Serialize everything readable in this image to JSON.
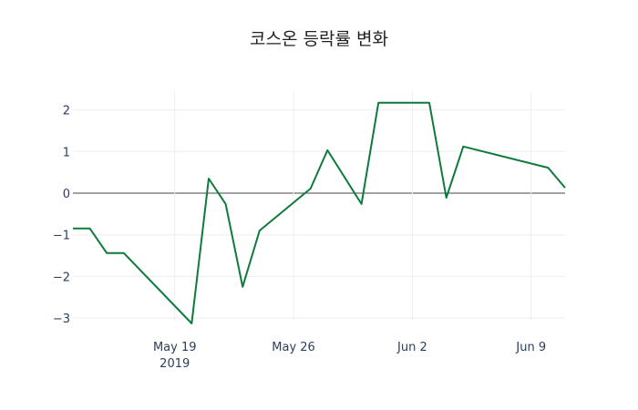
{
  "chart_data": {
    "type": "line",
    "title": "코스온 등락률 변화",
    "xlabel": "",
    "ylabel": "",
    "x": [
      "2019-05-13",
      "2019-05-14",
      "2019-05-15",
      "2019-05-16",
      "2019-05-20",
      "2019-05-21",
      "2019-05-22",
      "2019-05-23",
      "2019-05-24",
      "2019-05-27",
      "2019-05-28",
      "2019-05-30",
      "2019-05-31",
      "2019-06-03",
      "2019-06-04",
      "2019-06-05",
      "2019-06-10",
      "2019-06-11"
    ],
    "series": [
      {
        "name": "등락률",
        "color": "#0e7b3c",
        "values": [
          -0.85,
          -0.85,
          -1.44,
          -1.44,
          -3.13,
          0.35,
          -0.26,
          -2.25,
          -0.9,
          0.11,
          1.03,
          -0.26,
          2.17,
          2.17,
          -0.11,
          1.12,
          0.61,
          0.13
        ]
      }
    ],
    "x_ticks": [
      {
        "date": "2019-05-19",
        "label": "May 19",
        "sublabel": "2019"
      },
      {
        "date": "2019-05-26",
        "label": "May 26",
        "sublabel": ""
      },
      {
        "date": "2019-06-02",
        "label": "Jun 2",
        "sublabel": ""
      },
      {
        "date": "2019-06-09",
        "label": "Jun 9",
        "sublabel": ""
      }
    ],
    "y_ticks": [
      2,
      1,
      0,
      -1,
      -2,
      -3
    ],
    "y_tick_labels": [
      "2",
      "1",
      "0",
      "−1",
      "−2",
      "−3"
    ],
    "ylim": [
      -3.35,
      2.45
    ],
    "xlim": [
      "2019-05-13",
      "2019-06-11"
    ],
    "grid": true,
    "legend": false
  }
}
